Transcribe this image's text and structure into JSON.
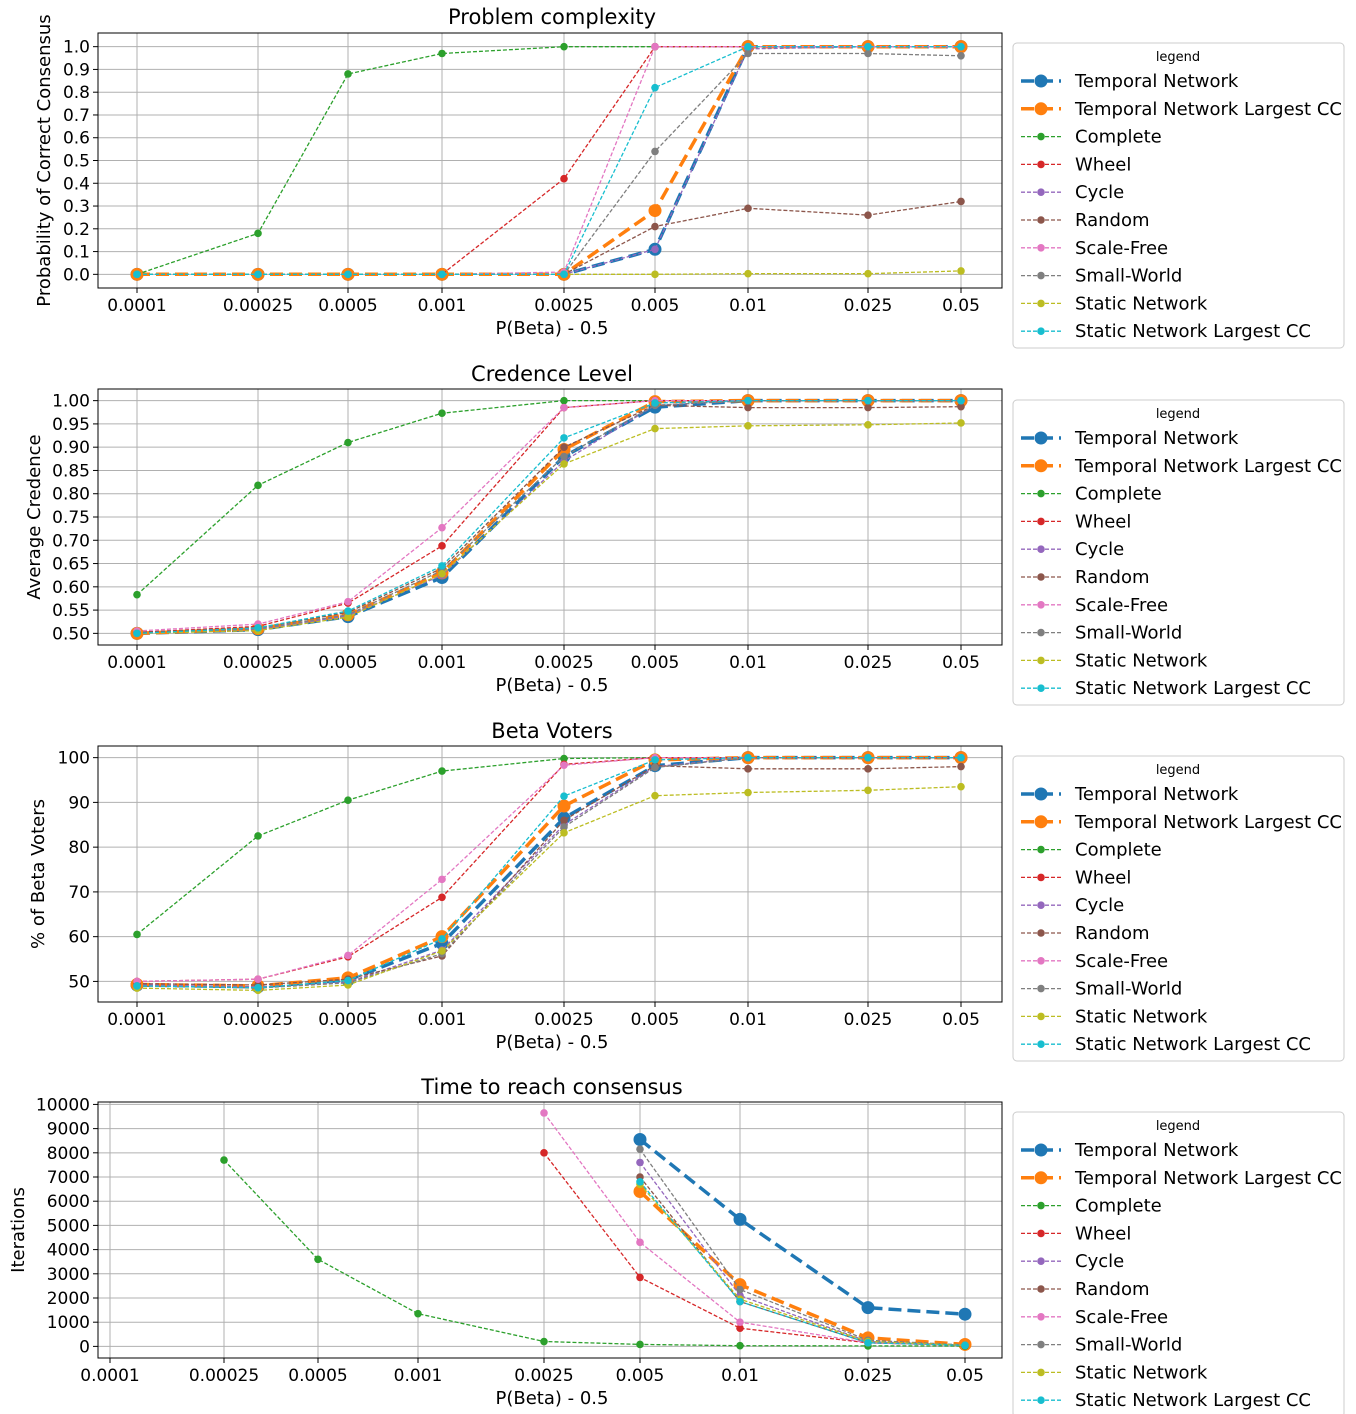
{
  "legend_title": "legend",
  "xticks": [
    "0.0001",
    "0.00025",
    "0.0005",
    "0.001",
    "0.0025",
    "0.005",
    "0.01",
    "0.025",
    "0.05"
  ],
  "series_meta": [
    {
      "name": "Temporal Network",
      "color": "#1f77b4",
      "style": "bold-dashed"
    },
    {
      "name": "Temporal Network Largest CC",
      "color": "#ff7f0e",
      "style": "bold-dashed"
    },
    {
      "name": "Complete",
      "color": "#2ca02c",
      "style": "thin-dashed"
    },
    {
      "name": "Wheel",
      "color": "#d62728",
      "style": "thin-dashed"
    },
    {
      "name": "Cycle",
      "color": "#9467bd",
      "style": "thin-dashed"
    },
    {
      "name": "Random",
      "color": "#8c564b",
      "style": "thin-dashed"
    },
    {
      "name": "Scale-Free",
      "color": "#e377c2",
      "style": "thin-dashed"
    },
    {
      "name": "Small-World",
      "color": "#7f7f7f",
      "style": "thin-dashed"
    },
    {
      "name": "Static Network",
      "color": "#bcbd22",
      "style": "thin-dashed"
    },
    {
      "name": "Static Network Largest CC",
      "color": "#17becf",
      "style": "thin-dashed"
    }
  ],
  "chart_data": [
    {
      "type": "line",
      "title": "Problem complexity",
      "xlabel": "P(Beta) - 0.5",
      "ylabel": "Probability of Correct Consensus",
      "categories": [
        "0.0001",
        "0.00025",
        "0.0005",
        "0.001",
        "0.0025",
        "0.005",
        "0.01",
        "0.025",
        "0.05"
      ],
      "ylim": [
        -0.06,
        1.06
      ],
      "yticks": [
        0.0,
        0.1,
        0.2,
        0.3,
        0.4,
        0.5,
        0.6,
        0.7,
        0.8,
        0.9,
        1.0
      ],
      "ytick_labels": [
        "0.0",
        "0.1",
        "0.2",
        "0.3",
        "0.4",
        "0.5",
        "0.6",
        "0.7",
        "0.8",
        "0.9",
        "1.0"
      ],
      "legend_position": "right",
      "grid": true,
      "series": [
        {
          "name": "Temporal Network",
          "values": [
            0,
            0,
            0,
            0,
            0,
            0.11,
            1.0,
            1.0,
            1.0
          ]
        },
        {
          "name": "Temporal Network Largest CC",
          "values": [
            0,
            0,
            0,
            0,
            0,
            0.28,
            1.0,
            1.0,
            1.0
          ]
        },
        {
          "name": "Complete",
          "values": [
            0,
            0.18,
            0.88,
            0.97,
            1.0,
            1.0,
            1.0,
            1.0,
            1.0
          ]
        },
        {
          "name": "Wheel",
          "values": [
            0,
            0,
            0,
            0,
            0.42,
            1.0,
            1.0,
            1.0,
            1.0
          ]
        },
        {
          "name": "Cycle",
          "values": [
            0,
            0,
            0,
            0,
            0,
            0.11,
            0.99,
            1.0,
            1.0
          ]
        },
        {
          "name": "Random",
          "values": [
            0,
            0,
            0,
            0,
            0,
            0.21,
            0.29,
            0.26,
            0.32
          ]
        },
        {
          "name": "Scale-Free",
          "values": [
            0,
            0,
            0,
            0,
            0.01,
            1.0,
            1.0,
            1.0,
            1.0
          ]
        },
        {
          "name": "Small-World",
          "values": [
            0,
            0,
            0,
            0,
            0,
            0.54,
            0.97,
            0.97,
            0.96
          ]
        },
        {
          "name": "Static Network",
          "values": [
            0,
            0,
            0,
            0,
            0,
            0,
            0.003,
            0.003,
            0.015
          ]
        },
        {
          "name": "Static Network Largest CC",
          "values": [
            0,
            0,
            0,
            0,
            0,
            0.82,
            1.0,
            1.0,
            1.0
          ]
        }
      ]
    },
    {
      "type": "line",
      "title": "Credence Level",
      "xlabel": "P(Beta) - 0.5",
      "ylabel": "Average Credence",
      "categories": [
        "0.0001",
        "0.00025",
        "0.0005",
        "0.001",
        "0.0025",
        "0.005",
        "0.01",
        "0.025",
        "0.05"
      ],
      "ylim": [
        0.475,
        1.025
      ],
      "yticks": [
        0.5,
        0.55,
        0.6,
        0.65,
        0.7,
        0.75,
        0.8,
        0.85,
        0.9,
        0.95,
        1.0
      ],
      "ytick_labels": [
        "0.50",
        "0.55",
        "0.60",
        "0.65",
        "0.70",
        "0.75",
        "0.80",
        "0.85",
        "0.90",
        "0.95",
        "1.00"
      ],
      "legend_position": "right",
      "grid": true,
      "series": [
        {
          "name": "Temporal Network",
          "values": [
            0.5,
            0.508,
            0.536,
            0.62,
            0.88,
            0.986,
            1.0,
            1.0,
            1.0
          ]
        },
        {
          "name": "Temporal Network Largest CC",
          "values": [
            0.5,
            0.51,
            0.54,
            0.63,
            0.895,
            0.998,
            1.0,
            1.0,
            1.0
          ]
        },
        {
          "name": "Complete",
          "values": [
            0.583,
            0.818,
            0.91,
            0.973,
            1.0,
            1.0,
            1.0,
            1.0,
            1.0
          ]
        },
        {
          "name": "Wheel",
          "values": [
            0.502,
            0.515,
            0.565,
            0.688,
            0.985,
            1.0,
            1.0,
            1.0,
            1.0
          ]
        },
        {
          "name": "Cycle",
          "values": [
            0.5,
            0.508,
            0.538,
            0.625,
            0.87,
            0.99,
            1.0,
            1.0,
            1.0
          ]
        },
        {
          "name": "Random",
          "values": [
            0.502,
            0.512,
            0.545,
            0.64,
            0.9,
            0.99,
            0.985,
            0.985,
            0.987
          ]
        },
        {
          "name": "Scale-Free",
          "values": [
            0.505,
            0.52,
            0.568,
            0.727,
            0.985,
            1.0,
            1.0,
            1.0,
            1.0
          ]
        },
        {
          "name": "Small-World",
          "values": [
            0.5,
            0.51,
            0.54,
            0.635,
            0.88,
            0.99,
            1.0,
            1.0,
            1.0
          ]
        },
        {
          "name": "Static Network",
          "values": [
            0.5,
            0.506,
            0.535,
            0.628,
            0.864,
            0.94,
            0.946,
            0.948,
            0.952
          ]
        },
        {
          "name": "Static Network Largest CC",
          "values": [
            0.5,
            0.512,
            0.548,
            0.645,
            0.92,
            0.995,
            1.0,
            1.0,
            1.0
          ]
        }
      ]
    },
    {
      "type": "line",
      "title": "Beta Voters",
      "xlabel": "P(Beta) - 0.5",
      "ylabel": "% of Beta Voters",
      "categories": [
        "0.0001",
        "0.00025",
        "0.0005",
        "0.001",
        "0.0025",
        "0.005",
        "0.01",
        "0.025",
        "0.05"
      ],
      "ylim": [
        45.4,
        102.6
      ],
      "yticks": [
        50,
        60,
        70,
        80,
        90,
        100
      ],
      "ytick_labels": [
        "50",
        "60",
        "70",
        "80",
        "90",
        "100"
      ],
      "legend_position": "right",
      "grid": true,
      "series": [
        {
          "name": "Temporal Network",
          "values": [
            49.2,
            48.8,
            50.3,
            58.5,
            86.5,
            98.2,
            100,
            100,
            100
          ]
        },
        {
          "name": "Temporal Network Largest CC",
          "values": [
            49.3,
            49.0,
            50.8,
            60.0,
            89.2,
            99.5,
            100,
            100,
            100
          ]
        },
        {
          "name": "Complete",
          "values": [
            60.5,
            82.5,
            90.5,
            97.0,
            99.8,
            100,
            100,
            100,
            100
          ]
        },
        {
          "name": "Wheel",
          "values": [
            50.0,
            50.5,
            55.5,
            68.8,
            98.5,
            100,
            100,
            100,
            100
          ]
        },
        {
          "name": "Cycle",
          "values": [
            49.2,
            48.8,
            49.8,
            57.0,
            85.0,
            98.0,
            100,
            100,
            100
          ]
        },
        {
          "name": "Random",
          "values": [
            49.5,
            49.2,
            50.5,
            55.7,
            86.0,
            98.2,
            97.5,
            97.5,
            98.0
          ]
        },
        {
          "name": "Scale-Free",
          "values": [
            50.0,
            50.5,
            55.8,
            72.8,
            98.3,
            100,
            100,
            100,
            100
          ]
        },
        {
          "name": "Small-World",
          "values": [
            49.0,
            48.5,
            49.7,
            56.2,
            84.5,
            97.8,
            100,
            100,
            100
          ]
        },
        {
          "name": "Static Network",
          "values": [
            48.5,
            48.0,
            49.2,
            56.8,
            83.2,
            91.5,
            92.2,
            92.7,
            93.5
          ]
        },
        {
          "name": "Static Network Largest CC",
          "values": [
            49.0,
            48.6,
            50.2,
            59.5,
            91.4,
            99.5,
            100,
            100,
            100
          ]
        }
      ]
    },
    {
      "type": "line",
      "title": "Time to reach consensus",
      "xlabel": "P(Beta) - 0.5",
      "ylabel": "Iterations",
      "categories": [
        "0.0001",
        "0.00025",
        "0.0005",
        "0.001",
        "0.0025",
        "0.005",
        "0.01",
        "0.025",
        "0.05"
      ],
      "ylim": [
        -480,
        10100
      ],
      "yticks": [
        0,
        1000,
        2000,
        3000,
        4000,
        5000,
        6000,
        7000,
        8000,
        9000,
        10000
      ],
      "ytick_labels": [
        "0",
        "1000",
        "2000",
        "3000",
        "4000",
        "5000",
        "6000",
        "7000",
        "8000",
        "9000",
        "10000"
      ],
      "legend_position": "right",
      "grid": true,
      "series": [
        {
          "name": "Temporal Network",
          "values": [
            null,
            null,
            null,
            null,
            null,
            8550,
            5250,
            1600,
            1330
          ]
        },
        {
          "name": "Temporal Network Largest CC",
          "values": [
            null,
            null,
            null,
            null,
            null,
            6400,
            2550,
            350,
            80
          ]
        },
        {
          "name": "Complete",
          "values": [
            null,
            7700,
            3600,
            1350,
            200,
            80,
            30,
            20,
            15
          ]
        },
        {
          "name": "Wheel",
          "values": [
            null,
            null,
            null,
            null,
            8000,
            2850,
            750,
            150,
            50
          ]
        },
        {
          "name": "Cycle",
          "values": [
            null,
            null,
            null,
            null,
            null,
            7600,
            2100,
            200,
            50
          ]
        },
        {
          "name": "Random",
          "values": [
            null,
            null,
            null,
            null,
            null,
            7000,
            1850,
            150,
            40
          ]
        },
        {
          "name": "Scale-Free",
          "values": [
            null,
            null,
            null,
            null,
            9650,
            4300,
            1000,
            150,
            50
          ]
        },
        {
          "name": "Small-World",
          "values": [
            null,
            null,
            null,
            null,
            null,
            8150,
            2350,
            250,
            60
          ]
        },
        {
          "name": "Static Network",
          "values": [
            null,
            null,
            null,
            null,
            null,
            6700,
            1950,
            200,
            50
          ]
        },
        {
          "name": "Static Network Largest CC",
          "values": [
            null,
            null,
            null,
            null,
            null,
            6800,
            1850,
            150,
            40
          ]
        }
      ]
    }
  ]
}
